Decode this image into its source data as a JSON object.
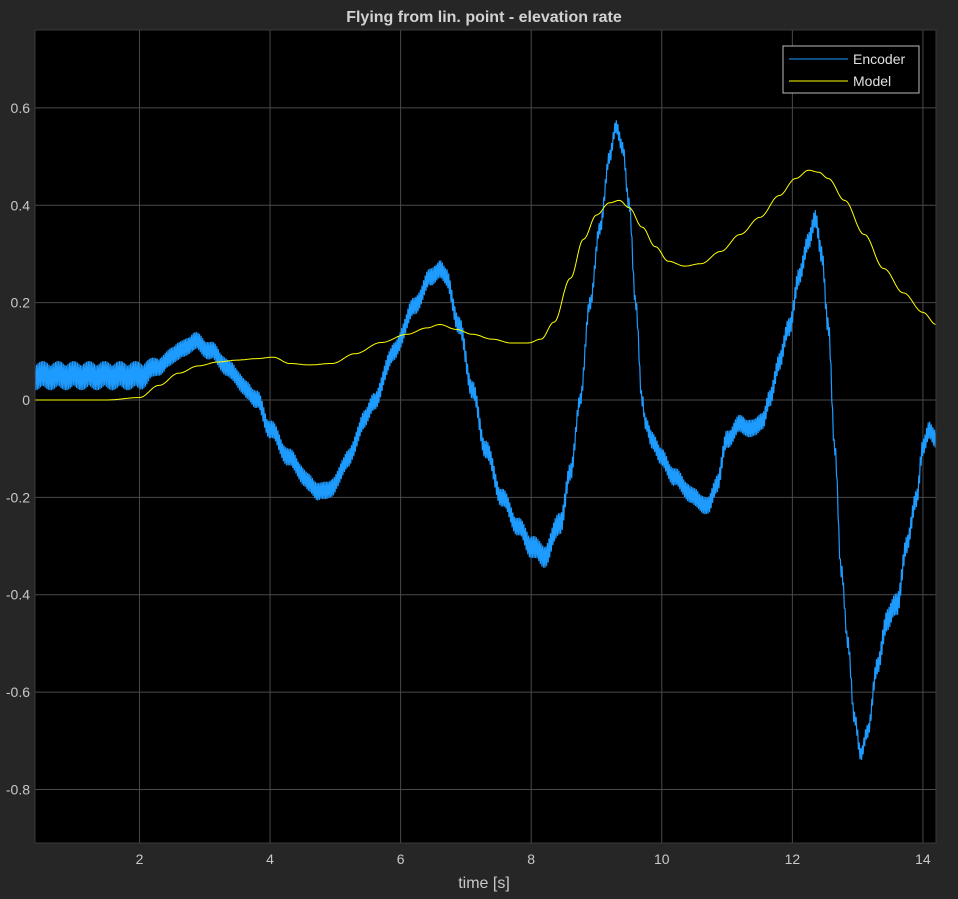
{
  "chart_data": {
    "type": "line",
    "title": "Flying from lin. point - elevation rate",
    "xlabel": "time [s]",
    "ylabel": "",
    "xlim": [
      0.4,
      14.2
    ],
    "ylim": [
      -0.91,
      0.76
    ],
    "xticks": [
      2,
      4,
      6,
      8,
      10,
      12,
      14
    ],
    "xtick_labels": [
      "2",
      "4",
      "6",
      "8",
      "10",
      "12",
      "14"
    ],
    "yticks": [
      0.6,
      0.4,
      0.2,
      0,
      -0.2,
      -0.4,
      -0.6,
      -0.8
    ],
    "ytick_labels": [
      "0.6",
      "0.4",
      "0.2",
      "0",
      "-0.2",
      "-0.4",
      "-0.6",
      "-0.8"
    ],
    "grid": true,
    "legend_position": "top-right",
    "background": "#000000",
    "figure_background": "#262626",
    "series": [
      {
        "name": "Encoder",
        "color": "#1e9bff",
        "x": [
          0.4,
          0.8,
          1.2,
          1.5,
          1.8,
          2.0,
          2.3,
          2.6,
          2.85,
          3.1,
          3.4,
          3.65,
          3.8,
          4.0,
          4.3,
          4.6,
          4.75,
          4.95,
          5.2,
          5.45,
          5.6,
          5.9,
          6.2,
          6.45,
          6.6,
          6.7,
          6.9,
          7.1,
          7.3,
          7.55,
          7.8,
          8.0,
          8.2,
          8.45,
          8.6,
          8.75,
          8.9,
          9.05,
          9.2,
          9.3,
          9.4,
          9.5,
          9.6,
          9.7,
          9.75,
          9.85,
          10.0,
          10.2,
          10.5,
          10.7,
          10.85,
          11.0,
          11.2,
          11.4,
          11.55,
          11.65,
          11.8,
          11.95,
          12.1,
          12.25,
          12.35,
          12.45,
          12.55,
          12.65,
          12.75,
          12.85,
          12.95,
          13.05,
          13.15,
          13.3,
          13.45,
          13.6,
          13.75,
          13.9,
          14.0,
          14.1,
          14.2
        ],
        "y": [
          0.05,
          0.05,
          0.05,
          0.05,
          0.05,
          0.05,
          0.07,
          0.1,
          0.12,
          0.1,
          0.06,
          0.02,
          0.0,
          -0.06,
          -0.12,
          -0.17,
          -0.19,
          -0.18,
          -0.12,
          -0.04,
          0.0,
          0.1,
          0.19,
          0.25,
          0.27,
          0.25,
          0.15,
          0.02,
          -0.1,
          -0.2,
          -0.26,
          -0.3,
          -0.32,
          -0.25,
          -0.15,
          0.0,
          0.2,
          0.35,
          0.5,
          0.56,
          0.52,
          0.4,
          0.2,
          0.0,
          -0.05,
          -0.08,
          -0.12,
          -0.16,
          -0.2,
          -0.22,
          -0.17,
          -0.08,
          -0.05,
          -0.06,
          -0.04,
          0.0,
          0.08,
          0.15,
          0.25,
          0.33,
          0.37,
          0.3,
          0.15,
          -0.1,
          -0.35,
          -0.5,
          -0.65,
          -0.73,
          -0.68,
          -0.55,
          -0.45,
          -0.42,
          -0.3,
          -0.2,
          -0.1,
          -0.06,
          -0.08
        ],
        "noise_amplitude": [
          0.03,
          0.03,
          0.03,
          0.03,
          0.03,
          0.03,
          0.02,
          0.02,
          0.02,
          0.02,
          0.02,
          0.02,
          0.02,
          0.02,
          0.02,
          0.02,
          0.02,
          0.02,
          0.02,
          0.02,
          0.02,
          0.02,
          0.02,
          0.02,
          0.02,
          0.02,
          0.02,
          0.02,
          0.02,
          0.02,
          0.02,
          0.025,
          0.025,
          0.025,
          0.02,
          0.015,
          0.015,
          0.015,
          0.015,
          0.015,
          0.015,
          0.015,
          0.015,
          0.015,
          0.015,
          0.02,
          0.02,
          0.02,
          0.02,
          0.02,
          0.02,
          0.02,
          0.02,
          0.02,
          0.02,
          0.02,
          0.02,
          0.02,
          0.02,
          0.02,
          0.02,
          0.02,
          0.02,
          0.015,
          0.015,
          0.015,
          0.015,
          0.015,
          0.015,
          0.02,
          0.025,
          0.025,
          0.02,
          0.02,
          0.02,
          0.02,
          0.02
        ]
      },
      {
        "name": "Model",
        "color": "#ffff00",
        "x": [
          0.4,
          1.0,
          1.5,
          2.0,
          2.3,
          2.6,
          2.9,
          3.2,
          3.5,
          3.8,
          4.05,
          4.3,
          4.6,
          4.95,
          5.3,
          5.7,
          6.1,
          6.4,
          6.6,
          6.85,
          7.1,
          7.4,
          7.7,
          7.95,
          8.15,
          8.35,
          8.6,
          8.8,
          9.0,
          9.2,
          9.35,
          9.5,
          9.7,
          9.9,
          10.1,
          10.35,
          10.6,
          10.9,
          11.2,
          11.5,
          11.8,
          12.05,
          12.25,
          12.4,
          12.55,
          12.8,
          13.1,
          13.4,
          13.7,
          14.0,
          14.2
        ],
        "y": [
          0.0,
          0.0,
          0.0,
          0.005,
          0.03,
          0.055,
          0.07,
          0.078,
          0.082,
          0.085,
          0.088,
          0.075,
          0.072,
          0.075,
          0.095,
          0.118,
          0.135,
          0.148,
          0.155,
          0.145,
          0.135,
          0.125,
          0.117,
          0.117,
          0.125,
          0.16,
          0.25,
          0.33,
          0.38,
          0.405,
          0.41,
          0.395,
          0.355,
          0.315,
          0.285,
          0.275,
          0.28,
          0.305,
          0.34,
          0.375,
          0.42,
          0.455,
          0.472,
          0.468,
          0.455,
          0.41,
          0.34,
          0.27,
          0.22,
          0.18,
          0.155
        ]
      }
    ]
  }
}
